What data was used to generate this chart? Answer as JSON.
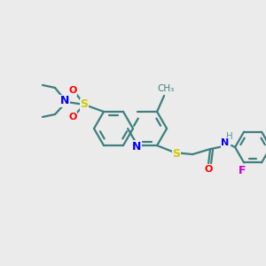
{
  "bg_color": "#ebebeb",
  "bond_color": "#3d7f7f",
  "atom_colors": {
    "N": "#0000ff",
    "O": "#ff0000",
    "S_sul": "#cccc00",
    "S_thio": "#cccc00",
    "F": "#cc00cc",
    "C": "#3d7f7f",
    "H": "#5a9a9a",
    "NH": "#5a9a9a"
  },
  "lw": 1.6,
  "ring_r": 20,
  "figsize": [
    3.0,
    3.0
  ],
  "dpi": 100,
  "xlim": [
    0,
    300
  ],
  "ylim": [
    0,
    300
  ]
}
